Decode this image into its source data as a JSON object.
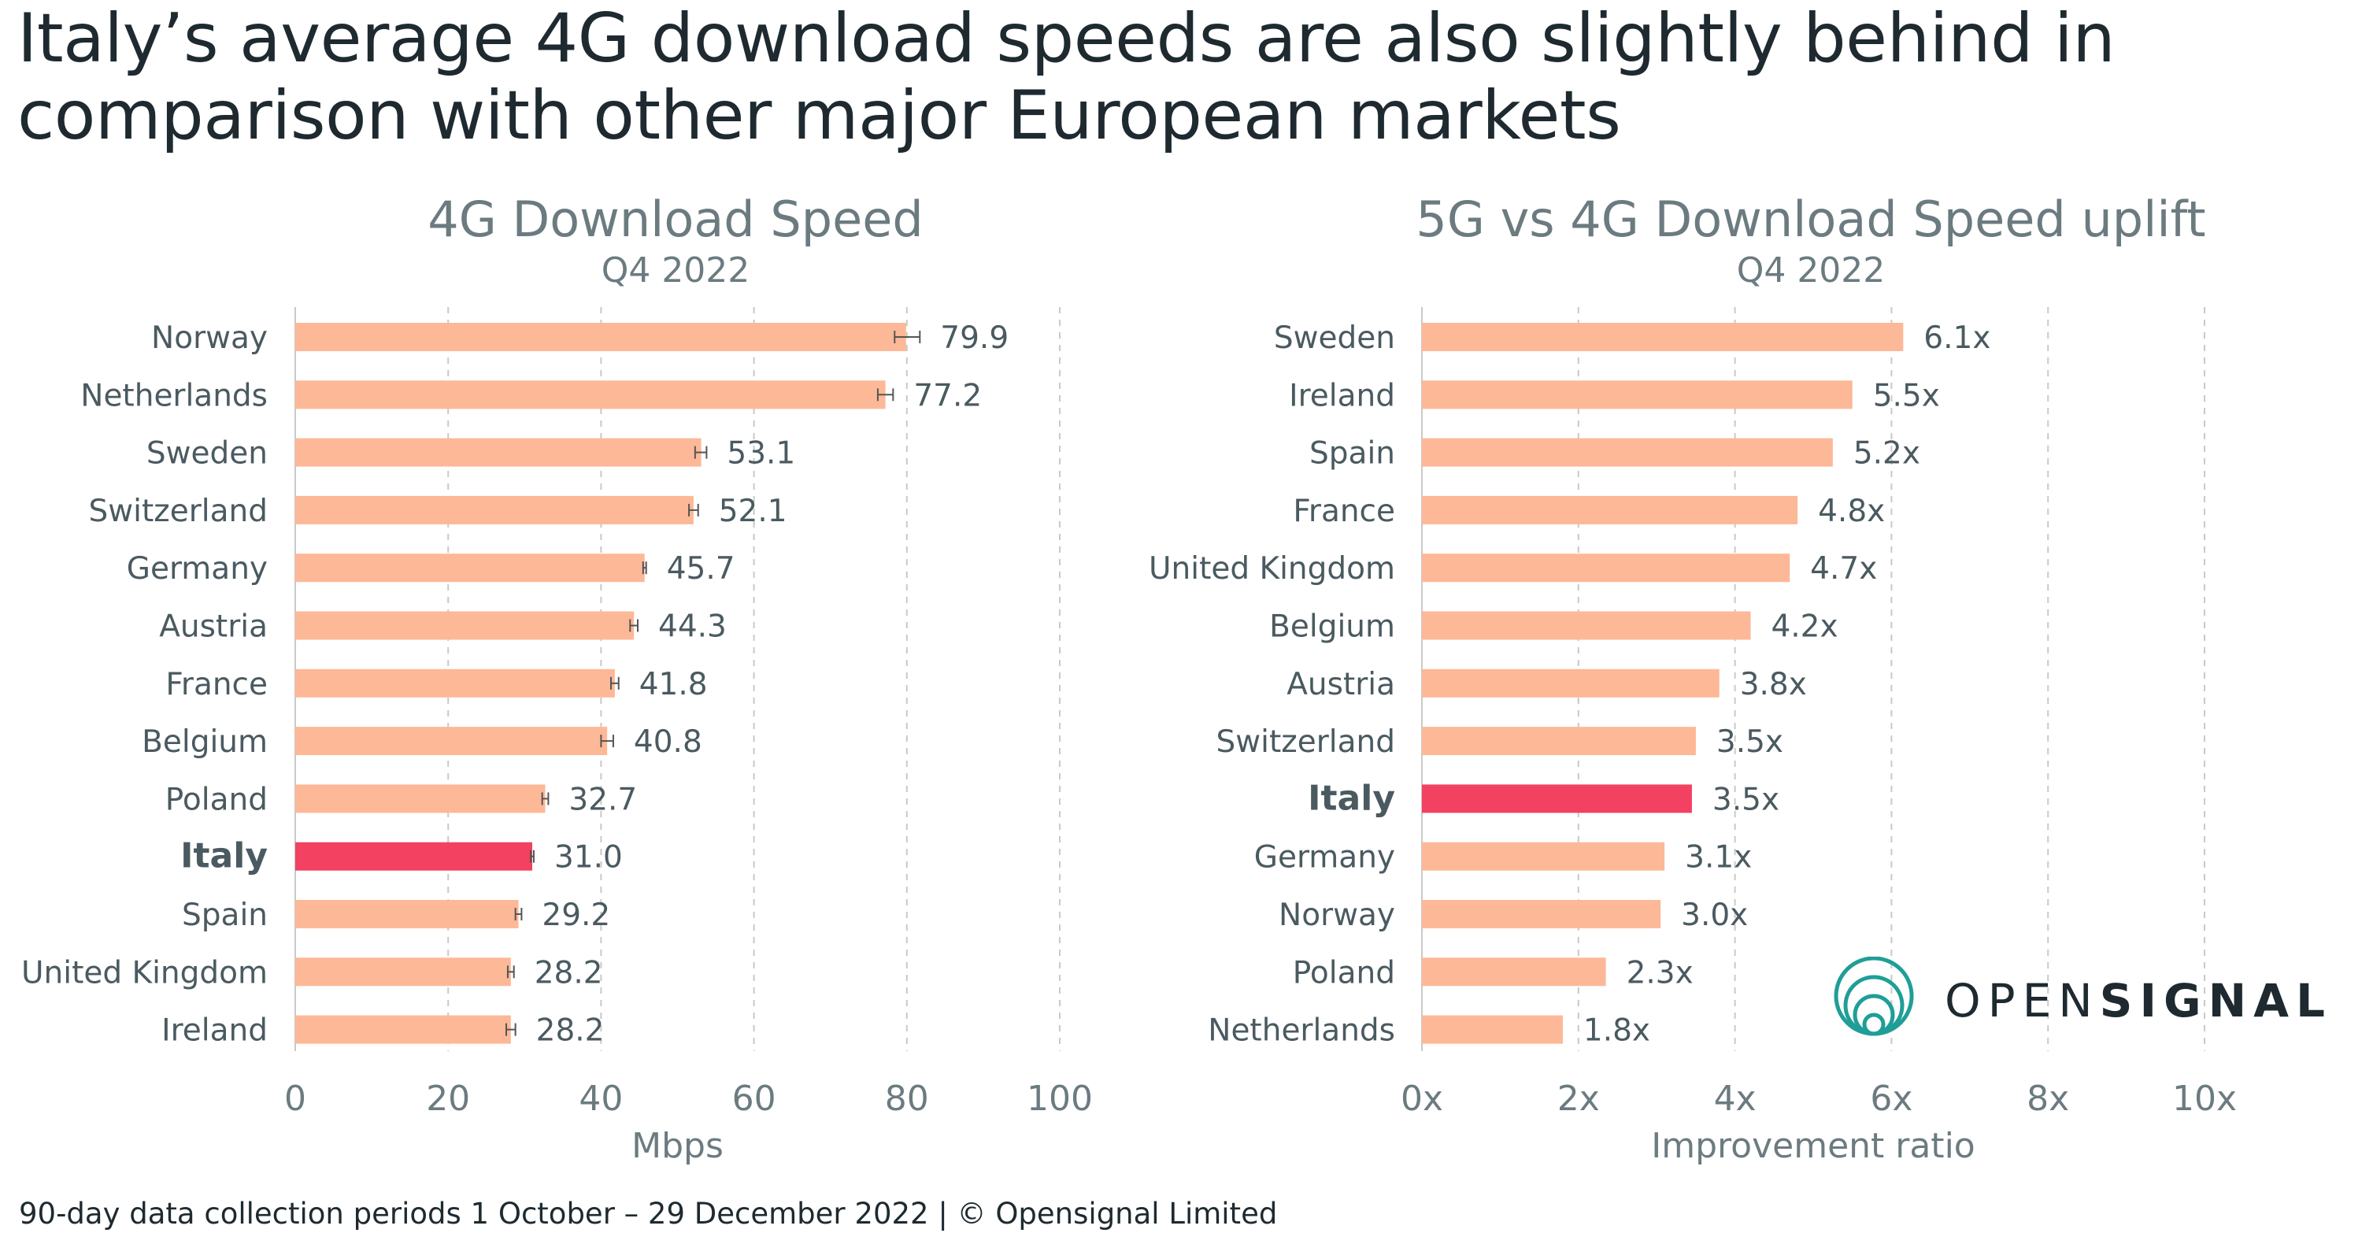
{
  "headline": "Italy’s average 4G download speeds are also slightly behind in comparison with other major European markets",
  "footer": "90-day data collection periods 1 October – 29 December 2022 |  © Opensignal Limited",
  "logo": {
    "word_light": "OPEN",
    "word_bold": "SIGNAL",
    "icon": "concentric-circles-icon"
  },
  "colors": {
    "bar": "#fdb897",
    "highlight": "#f24161",
    "grid": "#c9c9c9",
    "axis_text": "#6b7b80",
    "label_text": "#4a5a60"
  },
  "chart_data": [
    {
      "type": "bar",
      "orientation": "horizontal",
      "title": "4G Download Speed",
      "subtitle": "Q4 2022",
      "xlabel": "Mbps",
      "xlim": [
        0,
        100
      ],
      "xticks": [
        0,
        20,
        40,
        60,
        80,
        100
      ],
      "tick_labels": [
        "0",
        "20",
        "40",
        "60",
        "80",
        "100"
      ],
      "categories": [
        "Norway",
        "Netherlands",
        "Sweden",
        "Switzerland",
        "Germany",
        "Austria",
        "France",
        "Belgium",
        "Poland",
        "Italy",
        "Spain",
        "United Kingdom",
        "Ireland"
      ],
      "values": [
        79.9,
        77.2,
        53.1,
        52.1,
        45.7,
        44.3,
        41.8,
        40.8,
        32.7,
        31.0,
        29.2,
        28.2,
        28.2
      ],
      "value_labels": [
        "79.9",
        "77.2",
        "53.1",
        "52.1",
        "45.7",
        "44.3",
        "41.8",
        "40.8",
        "32.7",
        "31.0",
        "29.2",
        "28.2",
        "28.2"
      ],
      "error_low": [
        78.4,
        76.2,
        52.3,
        51.5,
        45.5,
        43.8,
        41.3,
        40.0,
        32.3,
        30.8,
        28.8,
        27.8,
        27.6
      ],
      "error_high": [
        81.7,
        78.2,
        53.8,
        52.7,
        45.9,
        44.8,
        42.3,
        41.6,
        33.1,
        31.2,
        29.6,
        28.6,
        28.8
      ],
      "highlight": "Italy",
      "grid": true
    },
    {
      "type": "bar",
      "orientation": "horizontal",
      "title": "5G vs 4G Download Speed uplift",
      "subtitle": "Q4 2022",
      "xlabel": "Improvement ratio",
      "xlim": [
        0,
        10
      ],
      "xticks": [
        0,
        2,
        4,
        6,
        8,
        10
      ],
      "tick_labels": [
        "0x",
        "2x",
        "4x",
        "6x",
        "8x",
        "10x"
      ],
      "categories": [
        "Sweden",
        "Ireland",
        "Spain",
        "France",
        "United Kingdom",
        "Belgium",
        "Austria",
        "Switzerland",
        "Italy",
        "Germany",
        "Norway",
        "Poland",
        "Netherlands"
      ],
      "values": [
        6.15,
        5.5,
        5.25,
        4.8,
        4.7,
        4.2,
        3.8,
        3.5,
        3.45,
        3.1,
        3.05,
        2.35,
        1.8
      ],
      "value_labels": [
        "6.1x",
        "5.5x",
        "5.2x",
        "4.8x",
        "4.7x",
        "4.2x",
        "3.8x",
        "3.5x",
        "3.5x",
        "3.1x",
        "3.0x",
        "2.3x",
        "1.8x"
      ],
      "highlight": "Italy",
      "grid": true
    }
  ]
}
